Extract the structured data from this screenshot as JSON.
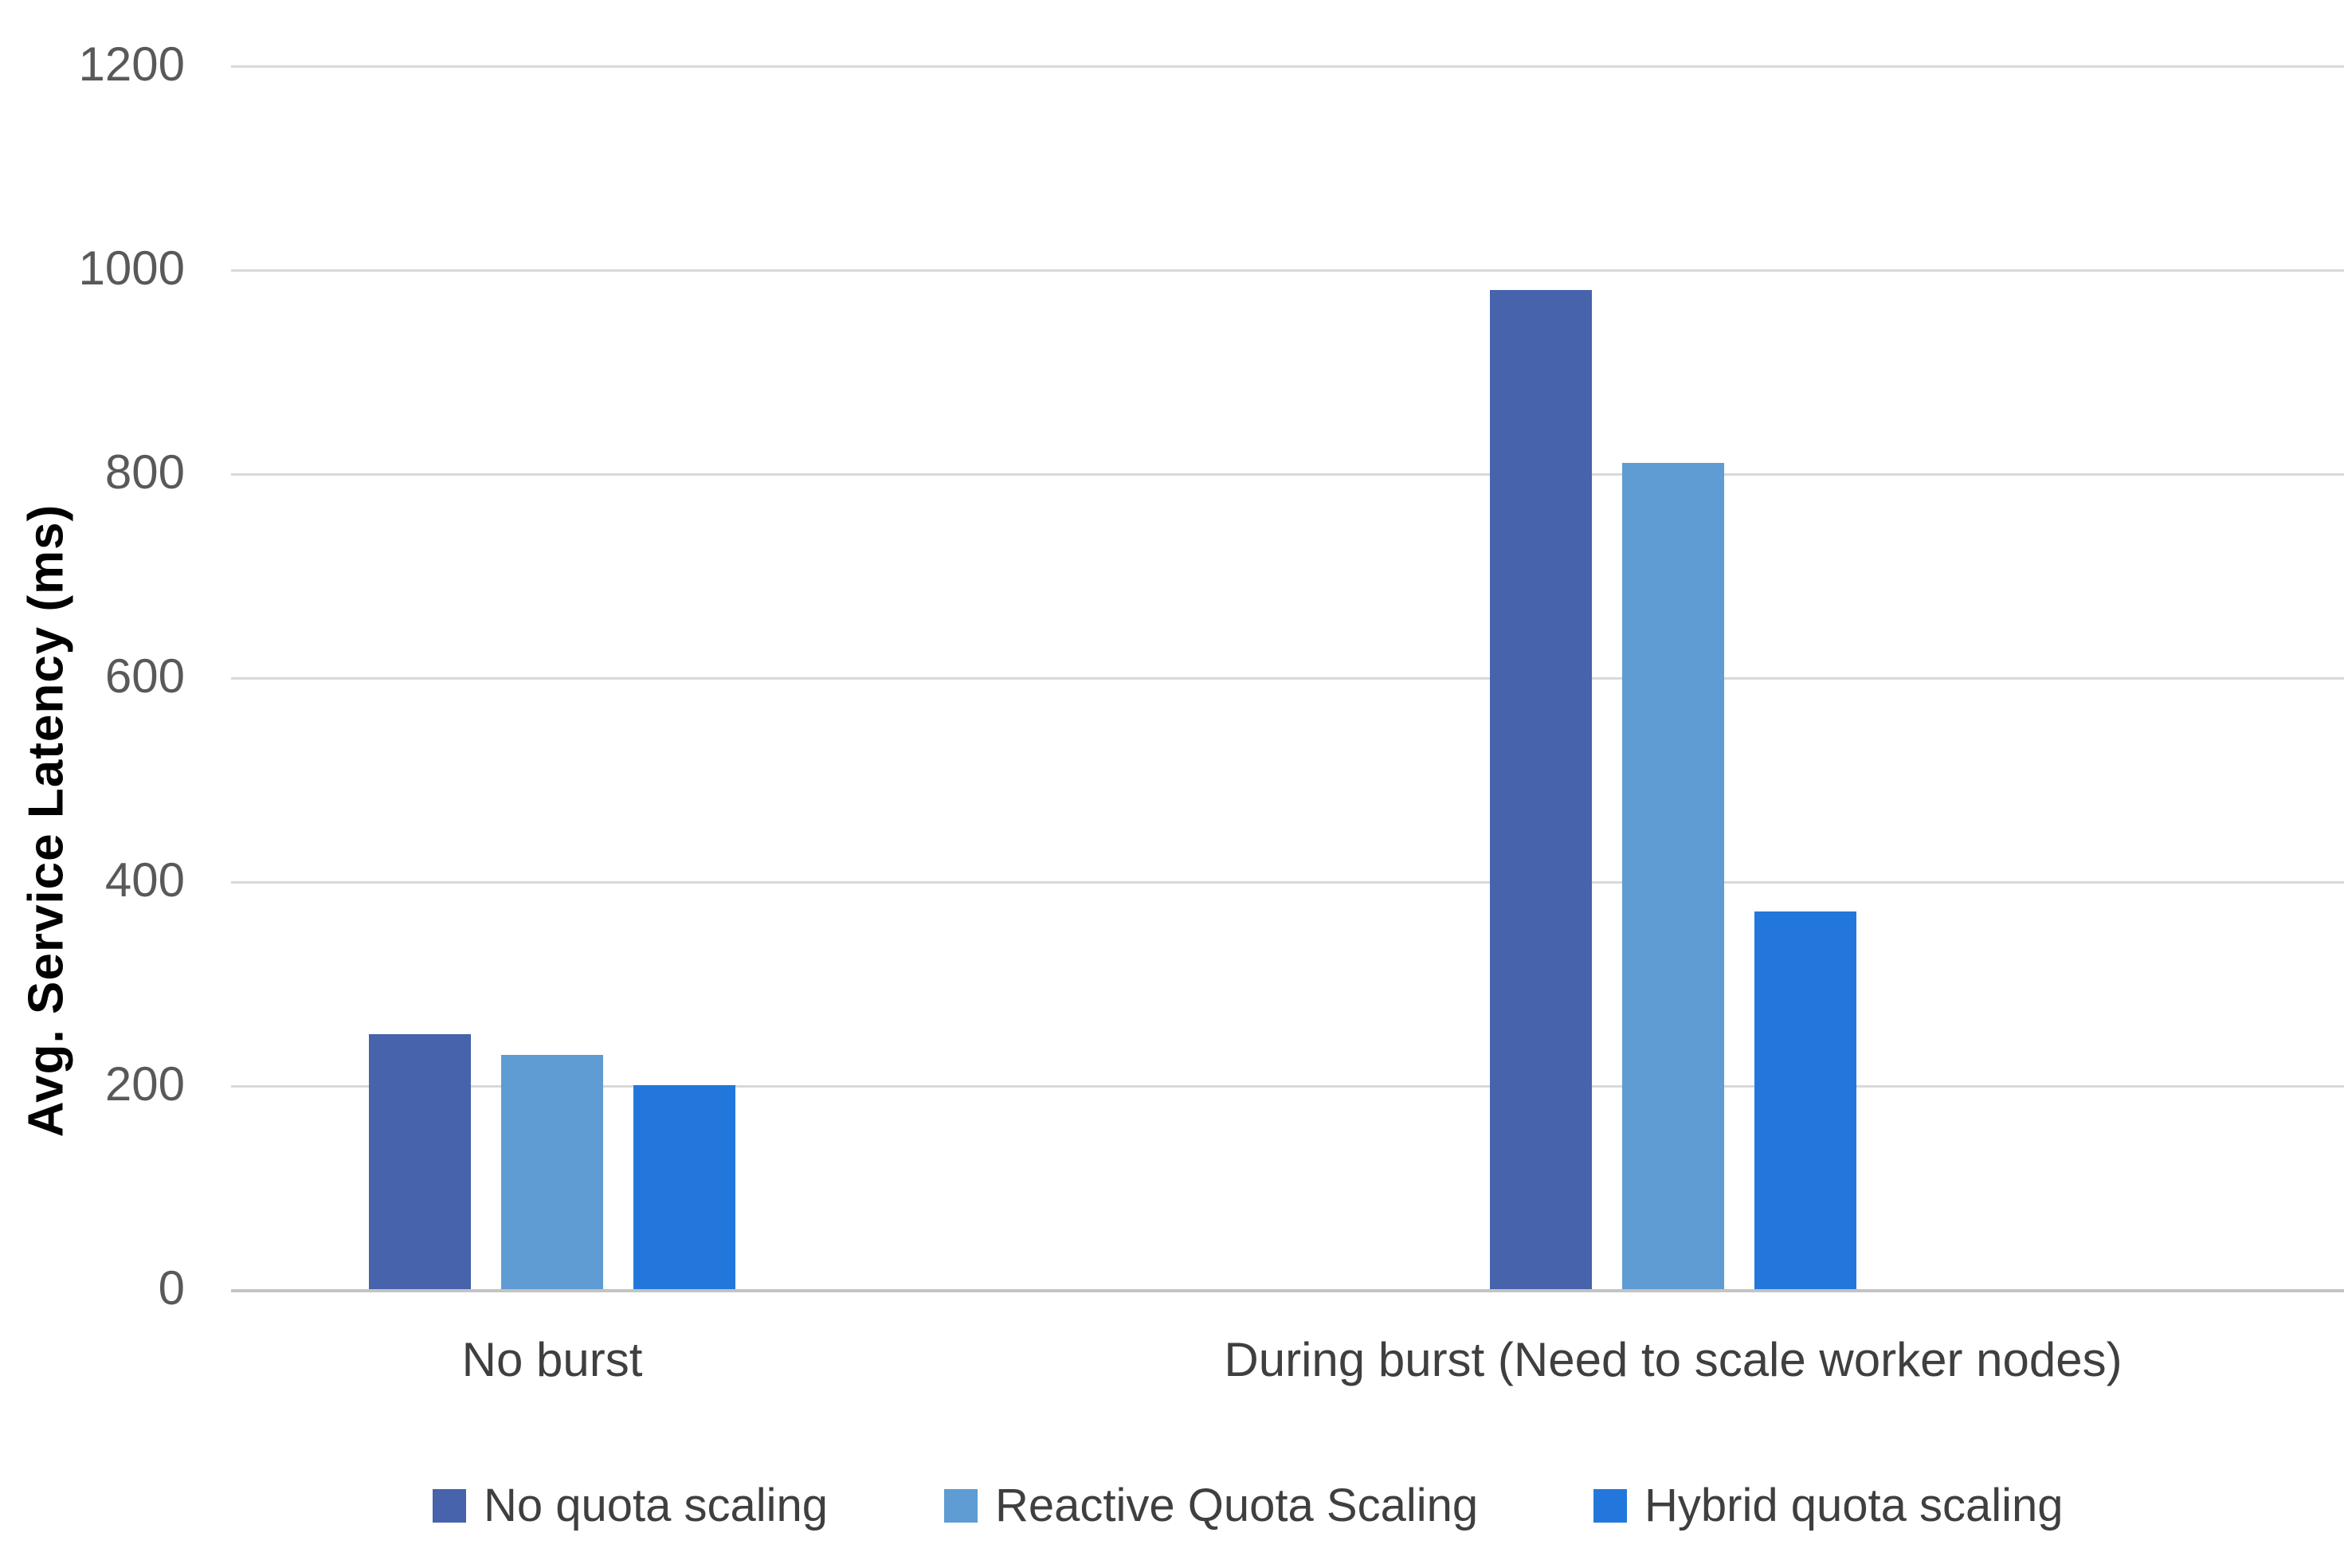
{
  "chart_data": {
    "type": "bar",
    "title": "",
    "ylabel": "Avg. Service Latency (ms)",
    "xlabel": "",
    "ylim": [
      0,
      1200
    ],
    "yticks": [
      0,
      200,
      400,
      600,
      800,
      1000,
      1200
    ],
    "grid": true,
    "legend_position": "bottom",
    "categories": [
      "No burst",
      "During burst (Need to scale worker nodes)"
    ],
    "series": [
      {
        "name": "No quota scaling",
        "color": "#4663AC",
        "values": [
          250,
          980
        ]
      },
      {
        "name": "Reactive Quota Scaling",
        "color": "#5E9CD3",
        "values": [
          230,
          810
        ]
      },
      {
        "name": "Hybrid quota scaling",
        "color": "#2377DC",
        "values": [
          200,
          370
        ]
      }
    ],
    "colors": {
      "gridline": "#d9d9d9",
      "axis_line": "#c3c3c3",
      "tick_text": "#595959",
      "category_text": "#3f3f3f",
      "axis_title_text": "#000000",
      "background": "#ffffff"
    }
  }
}
